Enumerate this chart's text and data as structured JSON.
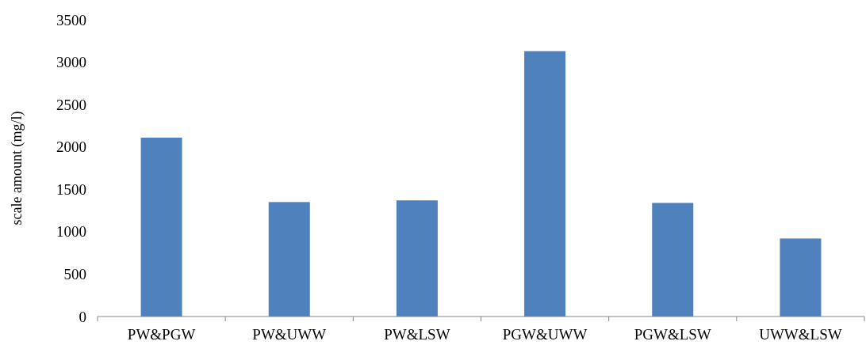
{
  "chart_data": {
    "type": "bar",
    "ylabel": "scale amount (mg/l)",
    "categories": [
      "PW&PGW",
      "PW&UWW",
      "PW&LSW",
      "PGW&UWW",
      "PGW&LSW",
      "UWW&LSW"
    ],
    "values": [
      2110,
      1350,
      1370,
      3130,
      1340,
      920
    ],
    "color": "#4f81bd",
    "ylim": [
      0,
      3500
    ],
    "yticks": [
      0,
      500,
      1000,
      1500,
      2000,
      2500,
      3000,
      3500
    ],
    "grid": false
  }
}
